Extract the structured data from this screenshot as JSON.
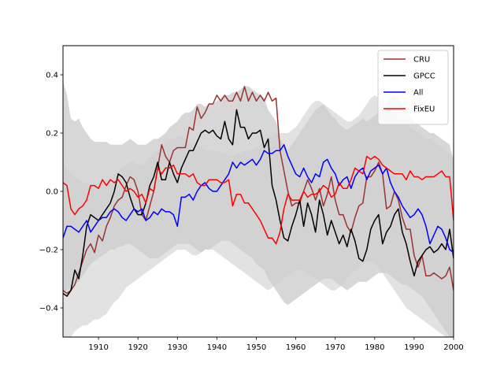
{
  "chart_data": {
    "type": "line",
    "title": "",
    "xlabel": "",
    "ylabel": "",
    "xlim": [
      1901,
      2000
    ],
    "ylim": [
      -0.5,
      0.5
    ],
    "xticks": [
      1910,
      1920,
      1930,
      1940,
      1950,
      1960,
      1970,
      1980,
      1990,
      2000
    ],
    "xtick_labels": [
      "1910",
      "1920",
      "1930",
      "1940",
      "1950",
      "1960",
      "1970",
      "1980",
      "1990",
      "2000"
    ],
    "yticks": [
      -0.4,
      -0.2,
      0.0,
      0.2,
      0.4
    ],
    "ytick_labels": [
      "−0.4",
      "−0.2",
      "0.0",
      "0.2",
      "0.4"
    ],
    "grid": false,
    "legend": {
      "position": "top-right"
    },
    "x_start": 1901,
    "bands": [
      {
        "color": "#bdbdbd",
        "upper": [
          0.38,
          0.33,
          0.25,
          0.24,
          0.25,
          0.22,
          0.2,
          0.18,
          0.17,
          0.17,
          0.17,
          0.17,
          0.16,
          0.16,
          0.16,
          0.16,
          0.17,
          0.18,
          0.17,
          0.16,
          0.16,
          0.16,
          0.17,
          0.18,
          0.18,
          0.19,
          0.2,
          0.22,
          0.23,
          0.24,
          0.26,
          0.27,
          0.27,
          0.28,
          0.3,
          0.3,
          0.29,
          0.3,
          0.3,
          0.31,
          0.32,
          0.33,
          0.33,
          0.34,
          0.34,
          0.35,
          0.36,
          0.36,
          0.35,
          0.34,
          0.33,
          0.32,
          0.28,
          0.26,
          0.24,
          0.18,
          0.16,
          0.14,
          0.16,
          0.18,
          0.2,
          0.22,
          0.24,
          0.26,
          0.28,
          0.29,
          0.3,
          0.28,
          0.26,
          0.25,
          0.23,
          0.22,
          0.21,
          0.22,
          0.23,
          0.24,
          0.25,
          0.24,
          0.25,
          0.26,
          0.27,
          0.28,
          0.3,
          0.32,
          0.33,
          0.32,
          0.3,
          0.28,
          0.26,
          0.24,
          0.23,
          0.22,
          0.21,
          0.2,
          0.2,
          0.19,
          0.18,
          0.17,
          0.16,
          0.1
        ],
        "lower": [
          -0.35,
          -0.34,
          -0.33,
          -0.32,
          -0.31,
          -0.29,
          -0.27,
          -0.25,
          -0.24,
          -0.23,
          -0.22,
          -0.21,
          -0.2,
          -0.2,
          -0.19,
          -0.19,
          -0.18,
          -0.18,
          -0.19,
          -0.2,
          -0.21,
          -0.22,
          -0.23,
          -0.23,
          -0.23,
          -0.22,
          -0.21,
          -0.2,
          -0.19,
          -0.18,
          -0.18,
          -0.18,
          -0.18,
          -0.19,
          -0.2,
          -0.21,
          -0.2,
          -0.2,
          -0.19,
          -0.18,
          -0.17,
          -0.17,
          -0.17,
          -0.18,
          -0.19,
          -0.2,
          -0.21,
          -0.22,
          -0.23,
          -0.25,
          -0.26,
          -0.27,
          -0.3,
          -0.32,
          -0.34,
          -0.36,
          -0.38,
          -0.39,
          -0.38,
          -0.37,
          -0.36,
          -0.35,
          -0.34,
          -0.33,
          -0.32,
          -0.31,
          -0.3,
          -0.3,
          -0.3,
          -0.31,
          -0.32,
          -0.33,
          -0.34,
          -0.33,
          -0.32,
          -0.31,
          -0.31,
          -0.31,
          -0.3,
          -0.29,
          -0.28,
          -0.28,
          -0.28,
          -0.29,
          -0.3,
          -0.31,
          -0.32,
          -0.32,
          -0.33,
          -0.34,
          -0.35,
          -0.36,
          -0.38,
          -0.4,
          -0.42,
          -0.44,
          -0.46,
          -0.48,
          -0.5,
          -0.5
        ]
      },
      {
        "color": "#cfcfcf",
        "upper": [
          0.1,
          0.08,
          0.06,
          0.05,
          0.04,
          0.03,
          0.03,
          0.02,
          0.02,
          0.03,
          0.03,
          0.04,
          0.05,
          0.06,
          0.07,
          0.08,
          0.09,
          0.1,
          0.1,
          0.09,
          0.09,
          0.1,
          0.12,
          0.13,
          0.14,
          0.15,
          0.17,
          0.18,
          0.18,
          0.19,
          0.19,
          0.18,
          0.17,
          0.16,
          0.16,
          0.15,
          0.14,
          0.14,
          0.14,
          0.14,
          0.13,
          0.13,
          0.12,
          0.12,
          0.13,
          0.13,
          0.14,
          0.14,
          0.14,
          0.15,
          0.16,
          0.17,
          0.18,
          0.19,
          0.2,
          0.2,
          0.2,
          0.2,
          0.21,
          0.22,
          0.24,
          0.26,
          0.28,
          0.3,
          0.31,
          0.31,
          0.3,
          0.29,
          0.28,
          0.27,
          0.26,
          0.25,
          0.24,
          0.24,
          0.25,
          0.26,
          0.28,
          0.3,
          0.32,
          0.33,
          0.32,
          0.31,
          0.29,
          0.28,
          0.27,
          0.25,
          0.24,
          0.23,
          0.22,
          0.21,
          0.2,
          0.19,
          0.18,
          0.18,
          0.17,
          0.16,
          0.15,
          0.14,
          0.13,
          0.12
        ],
        "lower": [
          -0.52,
          -0.52,
          -0.5,
          -0.48,
          -0.47,
          -0.46,
          -0.46,
          -0.45,
          -0.44,
          -0.44,
          -0.43,
          -0.42,
          -0.4,
          -0.38,
          -0.37,
          -0.35,
          -0.33,
          -0.32,
          -0.31,
          -0.3,
          -0.29,
          -0.28,
          -0.27,
          -0.26,
          -0.25,
          -0.24,
          -0.23,
          -0.22,
          -0.21,
          -0.2,
          -0.2,
          -0.2,
          -0.21,
          -0.22,
          -0.22,
          -0.21,
          -0.2,
          -0.2,
          -0.2,
          -0.21,
          -0.22,
          -0.23,
          -0.24,
          -0.25,
          -0.26,
          -0.27,
          -0.28,
          -0.29,
          -0.3,
          -0.31,
          -0.32,
          -0.33,
          -0.34,
          -0.33,
          -0.32,
          -0.31,
          -0.3,
          -0.29,
          -0.28,
          -0.27,
          -0.27,
          -0.27,
          -0.28,
          -0.29,
          -0.3,
          -0.31,
          -0.32,
          -0.33,
          -0.34,
          -0.34,
          -0.33,
          -0.32,
          -0.3,
          -0.28,
          -0.27,
          -0.26,
          -0.25,
          -0.24,
          -0.24,
          -0.25,
          -0.26,
          -0.28,
          -0.3,
          -0.32,
          -0.34,
          -0.36,
          -0.38,
          -0.4,
          -0.41,
          -0.42,
          -0.43,
          -0.44,
          -0.45,
          -0.46,
          -0.47,
          -0.48,
          -0.49,
          -0.5,
          -0.5,
          -0.5
        ]
      }
    ],
    "series": [
      {
        "name": "CRU",
        "color": "#993333",
        "values": [
          -0.34,
          -0.35,
          -0.34,
          -0.32,
          -0.28,
          -0.24,
          -0.2,
          -0.18,
          -0.21,
          -0.15,
          -0.17,
          -0.12,
          -0.09,
          -0.05,
          -0.03,
          -0.02,
          0.02,
          0.05,
          0.04,
          0.0,
          -0.08,
          -0.1,
          -0.05,
          0.0,
          0.08,
          0.16,
          0.12,
          0.1,
          0.14,
          0.15,
          0.15,
          0.15,
          0.22,
          0.21,
          0.29,
          0.25,
          0.27,
          0.3,
          0.3,
          0.33,
          0.31,
          0.33,
          0.31,
          0.31,
          0.34,
          0.31,
          0.36,
          0.31,
          0.34,
          0.31,
          0.33,
          0.31,
          0.34,
          0.31,
          0.32,
          0.14,
          0.07,
          0.0,
          -0.05,
          -0.04,
          -0.04,
          0.0,
          0.04,
          0.01,
          -0.03,
          0.01,
          -0.05,
          -0.01,
          0.05,
          -0.03,
          -0.08,
          -0.08,
          -0.12,
          -0.14,
          -0.09,
          -0.05,
          -0.04,
          0.05,
          0.05,
          0.07,
          0.1,
          0.06,
          -0.06,
          -0.05,
          0.0,
          -0.03,
          -0.09,
          -0.13,
          -0.13,
          -0.22,
          -0.26,
          -0.22,
          -0.29,
          -0.29,
          -0.28,
          -0.29,
          -0.3,
          -0.29,
          -0.26,
          -0.34
        ]
      },
      {
        "name": "GPCC",
        "color": "#000000",
        "values": [
          -0.35,
          -0.36,
          -0.34,
          -0.27,
          -0.3,
          -0.22,
          -0.12,
          -0.08,
          -0.09,
          -0.1,
          -0.08,
          -0.06,
          -0.04,
          0.0,
          0.06,
          0.05,
          0.03,
          -0.02,
          -0.06,
          -0.08,
          -0.08,
          -0.04,
          0.02,
          0.05,
          0.1,
          0.04,
          0.04,
          0.1,
          0.06,
          0.03,
          0.08,
          0.11,
          0.14,
          0.14,
          0.17,
          0.2,
          0.21,
          0.2,
          0.21,
          0.19,
          0.18,
          0.24,
          0.18,
          0.16,
          0.28,
          0.22,
          0.22,
          0.18,
          0.2,
          0.2,
          0.21,
          0.15,
          0.18,
          0.02,
          -0.03,
          -0.1,
          -0.16,
          -0.17,
          -0.12,
          -0.08,
          -0.03,
          -0.12,
          -0.04,
          -0.08,
          -0.14,
          -0.03,
          -0.08,
          -0.15,
          -0.1,
          -0.14,
          -0.18,
          -0.15,
          -0.19,
          -0.13,
          -0.17,
          -0.23,
          -0.24,
          -0.2,
          -0.13,
          -0.1,
          -0.08,
          -0.18,
          -0.14,
          -0.12,
          -0.08,
          -0.06,
          -0.14,
          -0.18,
          -0.24,
          -0.29,
          -0.24,
          -0.22,
          -0.2,
          -0.19,
          -0.21,
          -0.2,
          -0.18,
          -0.2,
          -0.13,
          -0.23
        ]
      },
      {
        "name": "All",
        "color": "#0000ff",
        "values": [
          -0.16,
          -0.12,
          -0.12,
          -0.13,
          -0.14,
          -0.12,
          -0.1,
          -0.14,
          -0.12,
          -0.1,
          -0.09,
          -0.09,
          -0.07,
          -0.06,
          -0.07,
          -0.09,
          -0.1,
          -0.08,
          -0.06,
          -0.07,
          -0.06,
          -0.1,
          -0.09,
          -0.07,
          -0.08,
          -0.06,
          -0.07,
          -0.07,
          -0.08,
          -0.12,
          -0.02,
          -0.02,
          -0.01,
          -0.03,
          0.0,
          0.02,
          0.03,
          0.01,
          0.0,
          0.0,
          0.02,
          0.04,
          0.06,
          0.1,
          0.08,
          0.1,
          0.09,
          0.1,
          0.11,
          0.09,
          0.11,
          0.14,
          0.13,
          0.13,
          0.14,
          0.14,
          0.16,
          0.12,
          0.09,
          0.06,
          0.05,
          0.08,
          0.05,
          0.03,
          0.06,
          0.05,
          0.1,
          0.11,
          0.08,
          0.06,
          0.02,
          0.04,
          0.05,
          0.01,
          0.05,
          0.07,
          0.08,
          0.04,
          0.07,
          0.08,
          0.09,
          0.06,
          0.08,
          0.03,
          0.0,
          -0.02,
          -0.05,
          -0.07,
          -0.09,
          -0.08,
          -0.06,
          -0.08,
          -0.12,
          -0.18,
          -0.15,
          -0.12,
          -0.13,
          -0.16,
          -0.2,
          -0.21
        ]
      },
      {
        "name": "FixEU",
        "color": "#ff0000",
        "values": [
          0.03,
          0.02,
          -0.06,
          -0.08,
          -0.06,
          -0.05,
          -0.03,
          0.02,
          0.02,
          0.01,
          0.04,
          0.02,
          0.04,
          0.03,
          0.04,
          0.02,
          0.0,
          0.01,
          0.0,
          -0.02,
          -0.01,
          -0.04,
          0.01,
          0.0,
          0.08,
          0.06,
          0.08,
          0.08,
          0.09,
          0.06,
          0.06,
          0.06,
          0.05,
          0.06,
          0.03,
          0.02,
          0.02,
          0.04,
          0.04,
          0.04,
          0.03,
          0.03,
          0.04,
          -0.05,
          -0.01,
          -0.01,
          -0.04,
          -0.04,
          -0.06,
          -0.08,
          -0.1,
          -0.13,
          -0.16,
          -0.16,
          -0.18,
          -0.14,
          -0.06,
          -0.01,
          -0.03,
          -0.03,
          -0.03,
          0.0,
          -0.02,
          -0.01,
          -0.01,
          0.0,
          0.02,
          0.01,
          -0.02,
          -0.01,
          0.03,
          0.01,
          0.01,
          0.04,
          0.08,
          0.07,
          0.06,
          0.12,
          0.11,
          0.12,
          0.11,
          0.09,
          0.08,
          0.07,
          0.06,
          0.06,
          0.06,
          0.04,
          0.07,
          0.05,
          0.05,
          0.04,
          0.05,
          0.05,
          0.05,
          0.06,
          0.07,
          0.05,
          0.05,
          -0.1
        ]
      }
    ]
  }
}
